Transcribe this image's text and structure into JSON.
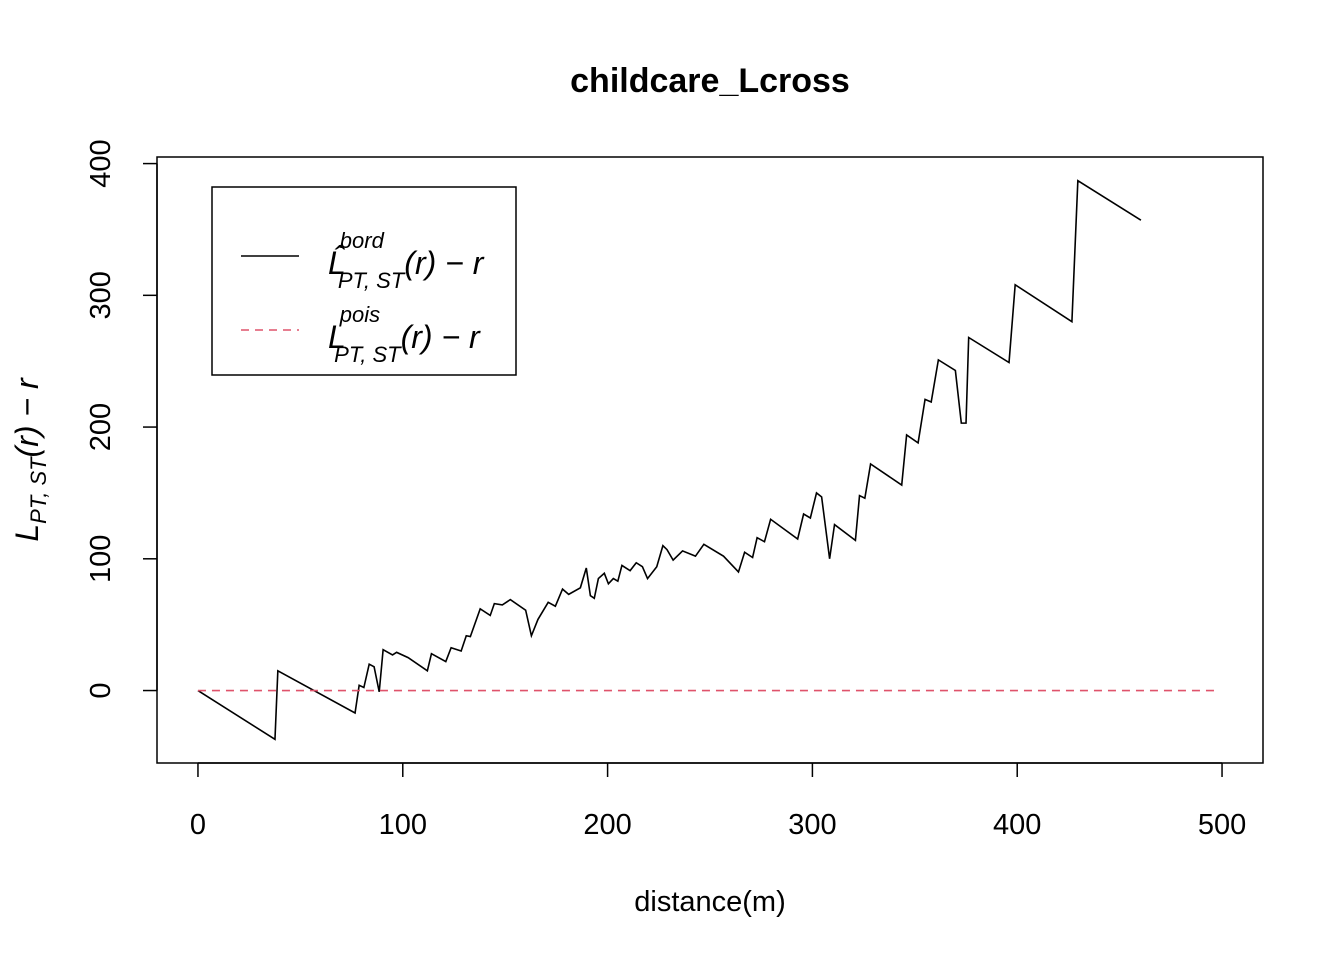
{
  "chart_data": {
    "type": "line",
    "title": "childcare_Lcross",
    "xlabel": "distance(m)",
    "ylabel": {
      "base": "L",
      "sub": "PT, ST",
      "rest": "(r) − r"
    },
    "xlim": [
      -20,
      520
    ],
    "ylim": [
      -55,
      405
    ],
    "xticks": [
      0,
      100,
      200,
      300,
      400,
      500
    ],
    "yticks": [
      0,
      100,
      200,
      300,
      400
    ],
    "legend": "top-left",
    "series": [
      {
        "name": {
          "base": "L̂",
          "sup": "bord",
          "sub": "PT, ST",
          "rest": "(r) − r"
        },
        "color": "#000000",
        "dash": "solid",
        "x": [
          0,
          37.6,
          39,
          76.7,
          78.7,
          81,
          83.6,
          86,
          88.5,
          90.4,
          95,
          97,
          102.6,
          112,
          114,
          121,
          123.6,
          128.5,
          131,
          133,
          137.8,
          142.7,
          144.7,
          148.6,
          152.5,
          160,
          162.8,
          166,
          171,
          174.5,
          178,
          181,
          186.7,
          189.6,
          191.6,
          193.5,
          195.5,
          198.4,
          200.4,
          202.8,
          205,
          207,
          211,
          214,
          217,
          219.5,
          224,
          227,
          229,
          232,
          236.6,
          242.9,
          247,
          256.6,
          263.9,
          266.9,
          270.8,
          273,
          276.6,
          279.6,
          292.8,
          295.7,
          299,
          302,
          304.5,
          308.4,
          310.8,
          321,
          323,
          325.6,
          328.4,
          343.6,
          346,
          351.6,
          355,
          358,
          361.5,
          369.8,
          372.7,
          375,
          376.3,
          396,
          399,
          426.7,
          429.6,
          460.4
        ],
        "values": [
          0,
          -37,
          15,
          -17,
          4,
          2.3,
          20,
          18,
          -1,
          31,
          27,
          29,
          25,
          15,
          28,
          22,
          32.5,
          30,
          41.6,
          41,
          62,
          57,
          66,
          65,
          69,
          61,
          41.6,
          54,
          67,
          64,
          77,
          73,
          78,
          93,
          72,
          70,
          85,
          89,
          81,
          85,
          83,
          95,
          91,
          97,
          94,
          85,
          94,
          110,
          107,
          99,
          106,
          102,
          111,
          102,
          90,
          105,
          101,
          116,
          113,
          130,
          115,
          134,
          131,
          150,
          147,
          100,
          126,
          114,
          148,
          146,
          172,
          156,
          194,
          188,
          221,
          219,
          251,
          243,
          203,
          203,
          268,
          249,
          308,
          280,
          387,
          357
        ]
      },
      {
        "name": {
          "base": "L",
          "sup": "pois",
          "sub": "PT, ST",
          "rest": "(r) − r"
        },
        "color": "#df536b",
        "dash": "dashed",
        "x": [
          0,
          497
        ],
        "values": [
          0,
          0
        ]
      }
    ]
  }
}
